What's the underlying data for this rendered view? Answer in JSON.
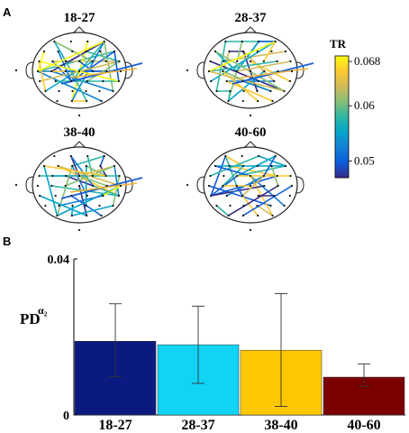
{
  "panels": {
    "a_label": "A",
    "b_label": "B"
  },
  "topomaps": {
    "titles": [
      "18-27",
      "28-37",
      "38-40",
      "40-60"
    ],
    "colorbar": {
      "title": "TR",
      "ticks": [
        {
          "value": 0.068,
          "label": "0.068"
        },
        {
          "value": 0.06,
          "label": "0.06"
        },
        {
          "value": 0.05,
          "label": "0.05"
        }
      ],
      "range": [
        0.047,
        0.069
      ],
      "colormap": [
        "#352a87",
        "#0f5cdd",
        "#1481d6",
        "#06a4ca",
        "#2eb7a4",
        "#87bf77",
        "#d1bb59",
        "#fec832",
        "#f9fb0e"
      ]
    }
  },
  "chart_data": {
    "type": "bar",
    "categories": [
      "18-27",
      "28-37",
      "38-40",
      "40-60"
    ],
    "values": [
      0.0189,
      0.018,
      0.0166,
      0.0097
    ],
    "error_low": [
      0.0098,
      0.0081,
      0.0022,
      0.0073
    ],
    "error_high": [
      0.0285,
      0.0279,
      0.0311,
      0.0131
    ],
    "colors": [
      "#0b1a80",
      "#11d4f4",
      "#fdc800",
      "#7a0000"
    ],
    "ylabel": "PD",
    "ylabel_superscript": "α₂",
    "ylim": [
      0,
      0.04
    ],
    "yticks": [
      {
        "value": 0,
        "label": "0"
      },
      {
        "value": 0.04,
        "label": "0.04"
      }
    ],
    "grid": false,
    "legend": "none"
  }
}
